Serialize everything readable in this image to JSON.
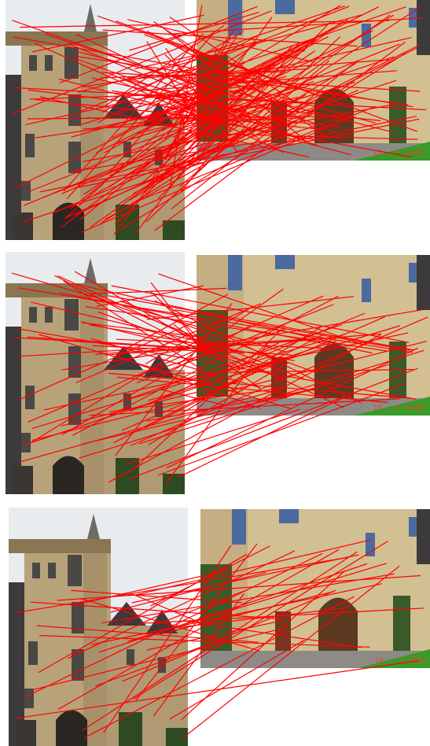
{
  "figure": {
    "panels": [
      {
        "id": "match-set-1",
        "date_stamp": "16 . 3.2006",
        "line_color": "#ff0000",
        "density": "very-dense"
      },
      {
        "id": "match-set-2",
        "date_stamp": "16 . 3.2006",
        "line_color": "#ff0000",
        "density": "dense"
      },
      {
        "id": "match-set-3",
        "date_stamp": "16 . 3.2006",
        "line_color": "#ff0000",
        "density": "sparse"
      }
    ]
  },
  "colors": {
    "background": "#ffffff",
    "sky": "#e9ecef",
    "stone": "#b8a27a",
    "stone_dark": "#8a7652",
    "roof": "#3c3a3a",
    "foliage": "#2e4a22",
    "grass": "#3a9a2a",
    "pavement": "#8e8a86",
    "match_line": "#ff0000",
    "stamp": "#e8461c"
  }
}
